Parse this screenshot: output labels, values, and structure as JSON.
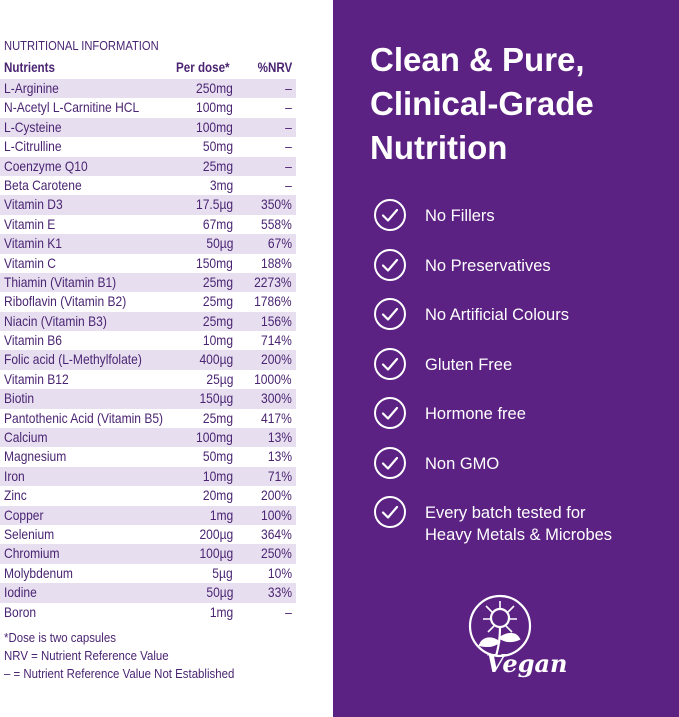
{
  "nutrition": {
    "title": "NUTRITIONAL INFORMATION",
    "headers": {
      "nutrient": "Nutrients",
      "dose": "Per dose*",
      "nrv": "%NRV"
    },
    "rows": [
      {
        "name": "L-Arginine",
        "dose": "250mg",
        "nrv": "–"
      },
      {
        "name": "N-Acetyl L-Carnitine HCL",
        "dose": "100mg",
        "nrv": "–"
      },
      {
        "name": "L-Cysteine",
        "dose": "100mg",
        "nrv": "–"
      },
      {
        "name": "L-Citrulline",
        "dose": "50mg",
        "nrv": "–"
      },
      {
        "name": "Coenzyme Q10",
        "dose": "25mg",
        "nrv": "–"
      },
      {
        "name": "Beta Carotene",
        "dose": "3mg",
        "nrv": "–"
      },
      {
        "name": "Vitamin D3",
        "dose": "17.5µg",
        "nrv": "350%"
      },
      {
        "name": "Vitamin E",
        "dose": "67mg",
        "nrv": "558%"
      },
      {
        "name": "Vitamin K1",
        "dose": "50µg",
        "nrv": "67%"
      },
      {
        "name": "Vitamin C",
        "dose": "150mg",
        "nrv": "188%"
      },
      {
        "name": "Thiamin (Vitamin B1)",
        "dose": "25mg",
        "nrv": "2273%"
      },
      {
        "name": "Riboflavin (Vitamin B2)",
        "dose": "25mg",
        "nrv": "1786%"
      },
      {
        "name": "Niacin (Vitamin B3)",
        "dose": "25mg",
        "nrv": "156%"
      },
      {
        "name": "Vitamin B6",
        "dose": "10mg",
        "nrv": "714%"
      },
      {
        "name": "Folic acid (L-Methylfolate)",
        "dose": "400µg",
        "nrv": "200%"
      },
      {
        "name": "Vitamin B12",
        "dose": "25µg",
        "nrv": "1000%"
      },
      {
        "name": "Biotin",
        "dose": "150µg",
        "nrv": "300%"
      },
      {
        "name": "Pantothenic Acid (Vitamin B5)",
        "dose": "25mg",
        "nrv": "417%"
      },
      {
        "name": "Calcium",
        "dose": "100mg",
        "nrv": "13%"
      },
      {
        "name": "Magnesium",
        "dose": "50mg",
        "nrv": "13%"
      },
      {
        "name": "Iron",
        "dose": "10mg",
        "nrv": "71%"
      },
      {
        "name": "Zinc",
        "dose": "20mg",
        "nrv": "200%"
      },
      {
        "name": "Copper",
        "dose": "1mg",
        "nrv": "100%"
      },
      {
        "name": "Selenium",
        "dose": "200µg",
        "nrv": "364%"
      },
      {
        "name": "Chromium",
        "dose": "100µg",
        "nrv": "250%"
      },
      {
        "name": "Molybdenum",
        "dose": "5µg",
        "nrv": "10%"
      },
      {
        "name": "Iodine",
        "dose": "50µg",
        "nrv": "33%"
      },
      {
        "name": "Boron",
        "dose": "1mg",
        "nrv": "–"
      }
    ],
    "notes": [
      "*Dose is two capsules",
      "NRV = Nutrient Reference Value",
      "– = Nutrient Reference Value Not Established"
    ]
  },
  "headline": {
    "line1": "Clean & Pure,",
    "line2": "Clinical-Grade",
    "line3": "Nutrition"
  },
  "features": [
    {
      "line1": "No Fillers",
      "line2": ""
    },
    {
      "line1": "No Preservatives",
      "line2": ""
    },
    {
      "line1": "No Artificial Colours",
      "line2": ""
    },
    {
      "line1": "Gluten Free",
      "line2": ""
    },
    {
      "line1": "Hormone free",
      "line2": ""
    },
    {
      "line1": "Non GMO",
      "line2": ""
    },
    {
      "line1": "Every batch tested for",
      "line2": "Heavy Metals & Microbes"
    }
  ],
  "feature_icon": "check-circle-icon",
  "badge": {
    "text": "Vegan",
    "icon": "sunflower-icon"
  },
  "colors": {
    "brand_purple": "#5b2183",
    "table_text": "#4a2472",
    "row_stripe": "#e7dff0"
  }
}
